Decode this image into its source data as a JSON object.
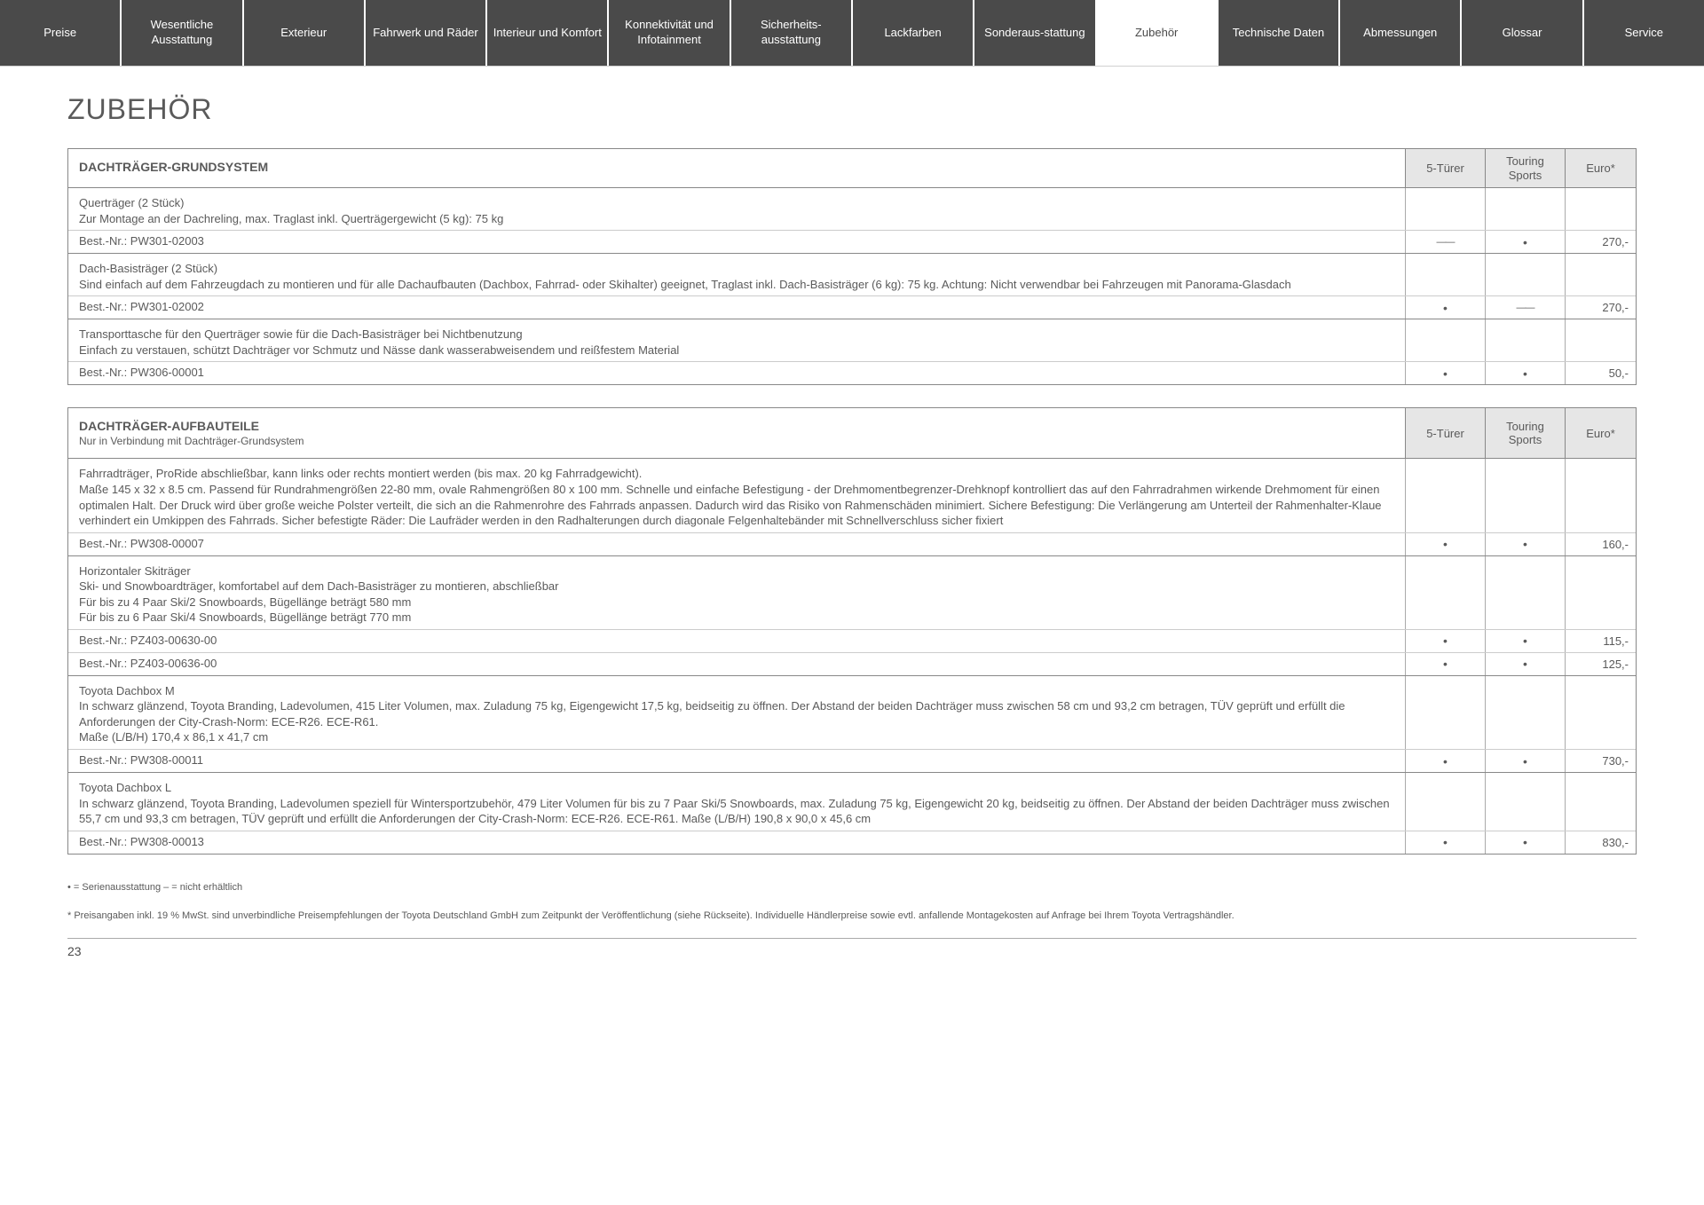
{
  "nav": {
    "items": [
      {
        "label": "Preise"
      },
      {
        "label": "Wesentliche Ausstattung"
      },
      {
        "label": "Exterieur"
      },
      {
        "label": "Fahrwerk und Räder"
      },
      {
        "label": "Interieur und Komfort"
      },
      {
        "label": "Konnektivität und Infotainment"
      },
      {
        "label": "Sicherheits-ausstattung"
      },
      {
        "label": "Lackfarben"
      },
      {
        "label": "Sonderaus-stattung"
      },
      {
        "label": "Zubehör"
      },
      {
        "label": "Technische Daten"
      },
      {
        "label": "Abmessungen"
      },
      {
        "label": "Glossar"
      },
      {
        "label": "Service"
      }
    ],
    "active_index": 9
  },
  "page_title": "ZUBEHÖR",
  "columns": {
    "c1": "5-Türer",
    "c2": "Touring Sports",
    "price": "Euro*"
  },
  "sections": [
    {
      "title": "DACHTRÄGER-GRUNDSYSTEM",
      "subtitle": "",
      "items": [
        {
          "title": "Querträger (2 Stück)",
          "desc": "Zur Montage an der Dachreling, max. Traglast inkl. Querträgergewicht (5 kg): 75 kg",
          "orders": [
            {
              "nr": "Best.-Nr.: PW301-02003",
              "c1": "—",
              "c2": "•",
              "price": "270,-"
            }
          ]
        },
        {
          "title": "Dach-Basisträger (2 Stück)",
          "desc": "Sind einfach auf dem Fahrzeugdach zu montieren und für alle Dachaufbauten (Dachbox, Fahrrad- oder Skihalter) geeignet, Traglast inkl. Dach-Basisträger (6 kg): 75 kg. Achtung: Nicht verwendbar bei Fahrzeugen mit Panorama-Glasdach",
          "orders": [
            {
              "nr": "Best.-Nr.: PW301-02002",
              "c1": "•",
              "c2": "—",
              "price": "270,-"
            }
          ]
        },
        {
          "title": "Transporttasche für den Querträger sowie für die Dach-Basisträger bei Nichtbenutzung",
          "desc": "Einfach zu verstauen, schützt Dachträger vor Schmutz und Nässe dank wasserabweisendem und reißfestem Material",
          "orders": [
            {
              "nr": "Best.-Nr.: PW306-00001",
              "c1": "•",
              "c2": "•",
              "price": "50,-"
            }
          ]
        }
      ]
    },
    {
      "title": "DACHTRÄGER-AUFBAUTEILE",
      "subtitle": "Nur in Verbindung mit Dachträger-Grundsystem",
      "items": [
        {
          "title": "Fahrradträger",
          "title_suffix": ", ProRide abschließbar, kann links oder rechts montiert werden (bis max. 20 kg Fahrradgewicht).",
          "desc": "Maße 145 x 32 x 8.5 cm. Passend für Rundrahmengrößen 22-80 mm, ovale Rahmengrößen 80 x 100 mm. Schnelle und einfache Befestigung - der Drehmomentbegrenzer-Drehknopf kontrolliert das auf den Fahrradrahmen wirkende Drehmoment für einen optimalen Halt. Der Druck wird über große weiche Polster verteilt, die sich an die Rahmenrohre des Fahrrads anpassen. Dadurch wird das Risiko von Rahmenschäden minimiert. Sichere Befestigung: Die Verlängerung am Unterteil der Rahmenhalter-Klaue verhindert ein Umkippen des Fahrrads. Sicher befestigte Räder: Die Laufräder werden in den Radhalterungen durch diagonale Felgenhaltebänder mit Schnellverschluss sicher fixiert",
          "orders": [
            {
              "nr": "Best.-Nr.: PW308-00007",
              "c1": "•",
              "c2": "•",
              "price": "160,-"
            }
          ]
        },
        {
          "title": "Horizontaler Skiträger",
          "desc": "Ski- und Snowboardträger, komfortabel auf dem Dach-Basisträger zu montieren, abschließbar\nFür bis zu 4 Paar Ski/2 Snowboards, Bügellänge beträgt 580 mm\nFür bis zu 6 Paar Ski/4 Snowboards, Bügellänge beträgt 770 mm",
          "orders": [
            {
              "nr": "Best.-Nr.: PZ403-00630-00",
              "c1": "•",
              "c2": "•",
              "price": "115,-"
            },
            {
              "nr": "Best.-Nr.: PZ403-00636-00",
              "c1": "•",
              "c2": "•",
              "price": "125,-"
            }
          ]
        },
        {
          "title": "Toyota Dachbox M",
          "desc": "In schwarz glänzend, Toyota Branding, Ladevolumen, 415 Liter Volumen, max. Zuladung 75 kg, Eigengewicht 17,5 kg, beidseitig zu öffnen. Der Abstand der beiden Dachträger muss zwischen 58 cm und 93,2 cm betragen, TÜV geprüft und erfüllt die Anforderungen der City-Crash-Norm: ECE-R26. ECE-R61.\nMaße (L/B/H) 170,4 x 86,1 x 41,7 cm",
          "orders": [
            {
              "nr": "Best.-Nr.: PW308-00011",
              "c1": "•",
              "c2": "•",
              "price": "730,-"
            }
          ]
        },
        {
          "title": "Toyota Dachbox L",
          "desc": "In schwarz glänzend, Toyota Branding, Ladevolumen speziell für Wintersportzubehör, 479 Liter Volumen für bis zu 7 Paar Ski/5 Snowboards, max. Zuladung 75 kg, Eigengewicht 20 kg, beidseitig zu öffnen. Der Abstand der beiden Dachträger muss zwischen 55,7 cm und 93,3 cm betragen, TÜV geprüft und erfüllt die Anforderungen der City-Crash-Norm: ECE-R26. ECE-R61. Maße (L/B/H) 190,8 x 90,0 x 45,6 cm",
          "orders": [
            {
              "nr": "Best.-Nr.: PW308-00013",
              "c1": "•",
              "c2": "•",
              "price": "830,-"
            }
          ]
        }
      ]
    }
  ],
  "legend": "• = Serienausstattung    – = nicht erhältlich",
  "footnote": "* Preisangaben inkl. 19 % MwSt. sind unverbindliche Preisempfehlungen der Toyota Deutschland GmbH zum Zeitpunkt der Veröffentlichung (siehe Rückseite). Individuelle Händlerpreise sowie evtl. anfallende Montagekosten auf Anfrage bei Ihrem Toyota Vertragshändler.",
  "page_number": "23"
}
